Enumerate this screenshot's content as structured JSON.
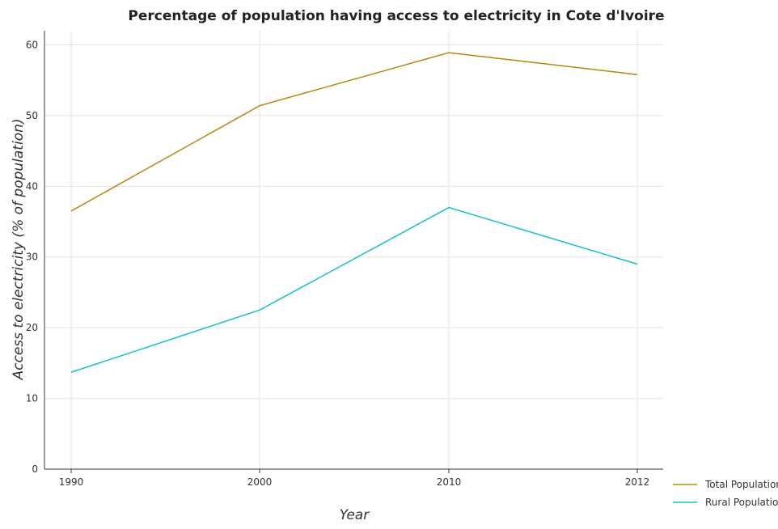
{
  "chart_data": {
    "type": "line",
    "title": "Percentage of population having access to electricity in Cote d'Ivoire",
    "xlabel": "Year",
    "ylabel": "Access to electricity (% of population)",
    "categories": [
      "1990",
      "2000",
      "2010",
      "2012"
    ],
    "y_ticks": [
      "0",
      "10",
      "20",
      "30",
      "40",
      "50",
      "60"
    ],
    "ylim": [
      0,
      62
    ],
    "grid": true,
    "legend_position": "bottom-right",
    "series": [
      {
        "name": "Total Population",
        "color": "#b8860b",
        "values": [
          36.5,
          51.4,
          58.9,
          55.8
        ]
      },
      {
        "name": "Rural Population",
        "color": "#17becf",
        "values": [
          13.7,
          22.5,
          37.0,
          29.0
        ]
      }
    ]
  }
}
